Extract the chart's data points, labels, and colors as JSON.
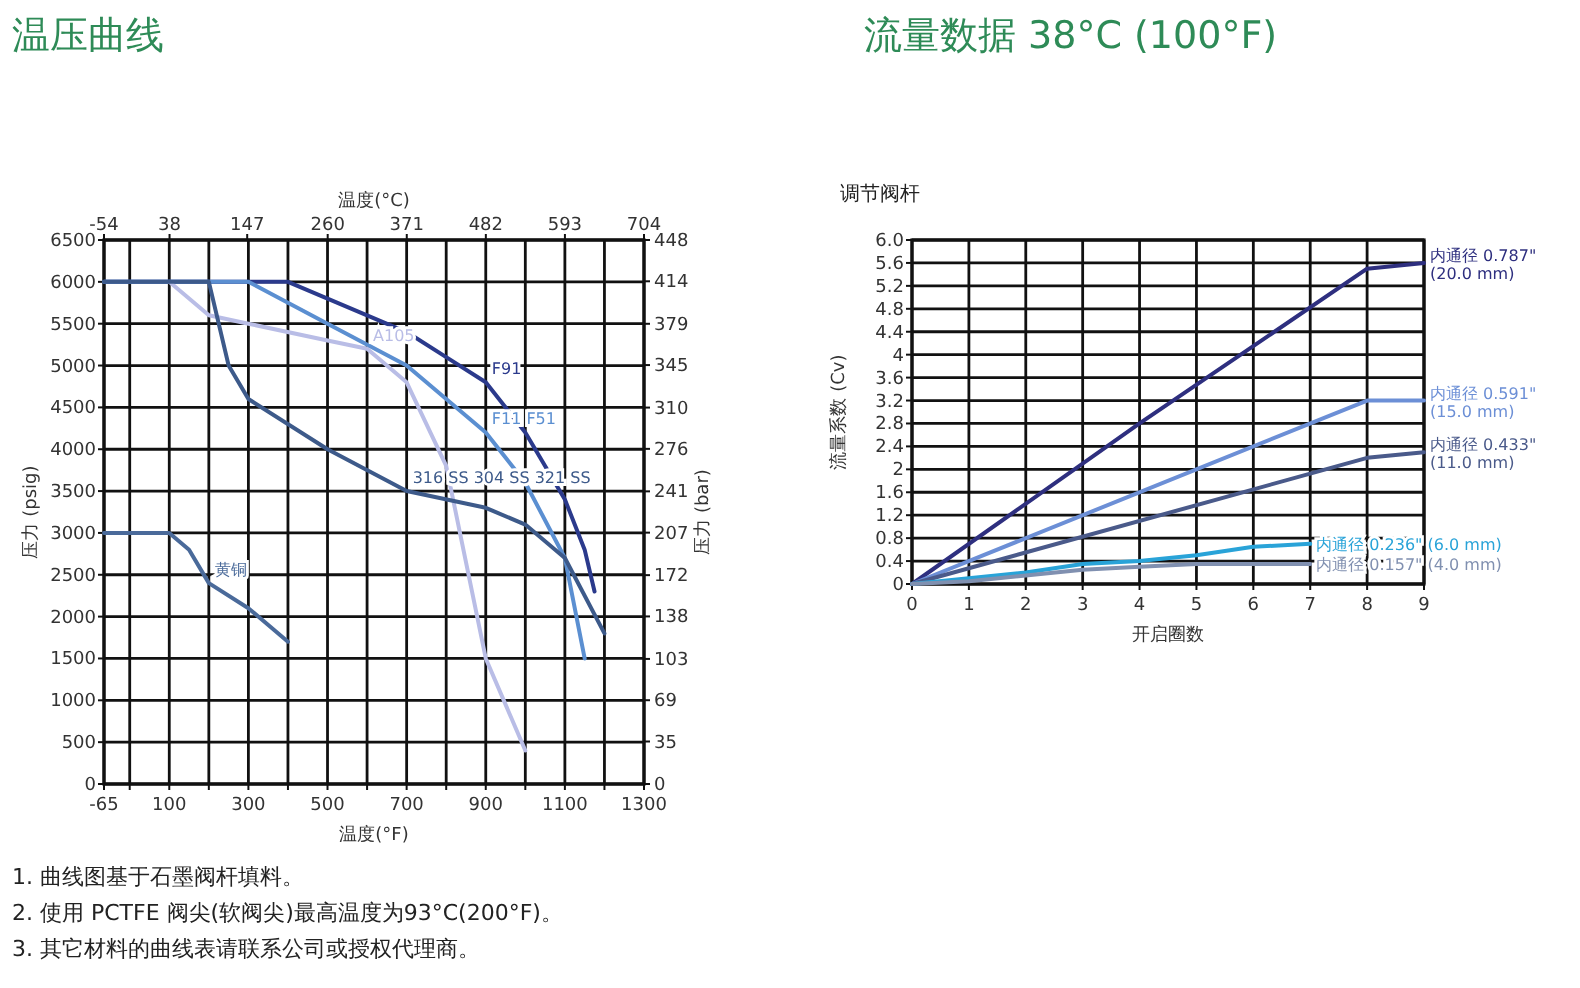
{
  "chart_data": [
    {
      "type": "line",
      "title": "温压曲线",
      "xlabel": "温度(°F)",
      "x2label": "温度(°C)",
      "ylabel": "压力 (psig)",
      "y2label": "压力 (bar)",
      "xlim": [
        -65,
        1300
      ],
      "xticks": [
        -65,
        {
          "value": 0,
          "label": null
        },
        100,
        {
          "value": 200,
          "label": null
        },
        300,
        {
          "value": 400,
          "label": null
        },
        500,
        {
          "value": 600,
          "label": null
        },
        700,
        {
          "value": 800,
          "label": null
        },
        900,
        {
          "value": 1000,
          "label": null
        },
        1100,
        {
          "value": 1200,
          "label": null
        },
        1300
      ],
      "x2lim": [
        -54,
        704
      ],
      "x2ticks": [
        -54,
        38,
        147,
        260,
        371,
        482,
        593,
        704
      ],
      "ylim": [
        0,
        6500
      ],
      "yticks": [
        0,
        500,
        1000,
        1500,
        2000,
        2500,
        3000,
        3500,
        4000,
        4500,
        5000,
        5500,
        6000,
        6500
      ],
      "y2lim": [
        0,
        448
      ],
      "y2ticks": [
        0,
        35,
        69,
        103,
        138,
        172,
        207,
        241,
        276,
        310,
        345,
        379,
        414,
        448
      ],
      "grid": true,
      "line_style": "solid",
      "series": [
        {
          "name": "F91",
          "color": "#2b3a8c",
          "x": [
            -65,
            400,
            500,
            700,
            800,
            900,
            1000,
            1100,
            1150,
            1175
          ],
          "values": [
            6000,
            6000,
            5800,
            5400,
            5100,
            4800,
            4200,
            3400,
            2800,
            2300
          ]
        },
        {
          "name": "F11 F51",
          "color": "#5b8fd1",
          "x": [
            -65,
            300,
            500,
            700,
            900,
            1000,
            1100,
            1150
          ],
          "values": [
            6000,
            6000,
            5500,
            5000,
            4200,
            3600,
            2700,
            1500
          ]
        },
        {
          "name": "A105",
          "color": "#b9bde6",
          "x": [
            100,
            200,
            300,
            500,
            600,
            700,
            800,
            900,
            1000
          ],
          "values": [
            6000,
            5600,
            5500,
            5300,
            5200,
            4800,
            3800,
            1500,
            400
          ]
        },
        {
          "name": "316 SS 304 SS 321 SS",
          "color": "#3d5a8a",
          "x": [
            -65,
            200,
            250,
            300,
            500,
            700,
            900,
            1000,
            1100,
            1200
          ],
          "values": [
            6000,
            6000,
            5000,
            4600,
            4000,
            3500,
            3300,
            3100,
            2700,
            1800
          ]
        },
        {
          "name": "黄铜",
          "color": "#4a6a9a",
          "x": [
            -65,
            100,
            150,
            200,
            300,
            400
          ],
          "values": [
            3000,
            3000,
            2800,
            2400,
            2100,
            1700
          ]
        }
      ],
      "annotations": [
        "1. 曲线图基于石墨阀杆填料。",
        "2. 使用 PCTFE 阀尖(软阀尖)最高温度为93°C(200°F)。",
        "3. 其它材料的曲线表请联系公司或授权代理商。"
      ]
    },
    {
      "type": "line",
      "title": "流量数据 38°C (100°F)",
      "subtitle": "调节阀杆",
      "xlabel": "开启圈数",
      "ylabel": "流量系数 (Cv)",
      "xlim": [
        0,
        9
      ],
      "xticks": [
        0,
        1,
        2,
        3,
        4,
        5,
        6,
        7,
        8,
        9
      ],
      "ylim": [
        0,
        6.0
      ],
      "yticks": [
        0,
        0.4,
        0.8,
        1.2,
        1.6,
        2.0,
        2.4,
        2.8,
        3.2,
        3.6,
        4.0,
        4.4,
        4.8,
        5.2,
        5.6,
        {
          "value": 6.0,
          "label": "6.0"
        }
      ],
      "grid": true,
      "line_style": "solid",
      "series": [
        {
          "name": "内通径 0.787\" (20.0 mm)",
          "color": "#2e2f7f",
          "x": [
            0,
            4,
            8,
            9
          ],
          "values": [
            0,
            2.8,
            5.5,
            5.6
          ]
        },
        {
          "name": "内通径 0.591\" (15.0 mm)",
          "color": "#6c8fd6",
          "x": [
            0,
            8,
            9
          ],
          "values": [
            0,
            3.2,
            3.2
          ]
        },
        {
          "name": "内通径 0.433\" (11.0 mm)",
          "color": "#4a5a8a",
          "x": [
            0,
            8,
            9
          ],
          "values": [
            0,
            2.2,
            2.3
          ]
        },
        {
          "name": "内通径 0.236\" (6.0 mm)",
          "color": "#29a3d8",
          "x": [
            0,
            1,
            2,
            3,
            4,
            5,
            6,
            7
          ],
          "values": [
            0,
            0.1,
            0.2,
            0.35,
            0.4,
            0.5,
            0.65,
            0.7
          ]
        },
        {
          "name": "内通径 0.157\" (4.0 mm)",
          "color": "#8090b0",
          "x": [
            0,
            1,
            2,
            3,
            4,
            5,
            6,
            7
          ],
          "values": [
            0,
            0.05,
            0.15,
            0.25,
            0.3,
            0.35,
            0.35,
            0.35
          ]
        }
      ]
    }
  ]
}
